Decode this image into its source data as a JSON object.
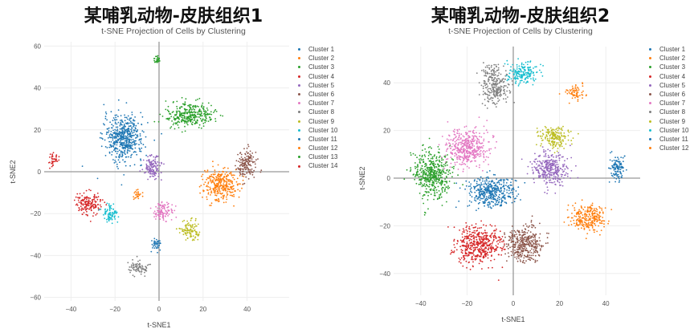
{
  "panels": [
    {
      "heading": "某哺乳动物-皮肤组织1",
      "subtitle": "t-SNE Projection of Cells by Clustering",
      "xlabel": "t-SNE1",
      "ylabel": "t-SNE2",
      "xticks": [
        "−40",
        "−20",
        "0",
        "20",
        "40"
      ],
      "yticks": [
        "60",
        "40",
        "20",
        "0",
        "−20",
        "−40",
        "−60"
      ],
      "legend": [
        "Cluster 1",
        "Cluster 2",
        "Cluster 3",
        "Cluster 4",
        "Cluster 5",
        "Cluster 6",
        "Cluster 7",
        "Cluster 8",
        "Cluster 9",
        "Cluster 10",
        "Cluster 11",
        "Cluster 12",
        "Cluster 13",
        "Cluster 14"
      ]
    },
    {
      "heading": "某哺乳动物-皮肤组织2",
      "subtitle": "t-SNE Projection of Cells by Clustering",
      "xlabel": "t-SNE1",
      "ylabel": "t-SNE2",
      "xticks": [
        "−40",
        "−20",
        "0",
        "20",
        "40"
      ],
      "yticks": [
        "40",
        "20",
        "0",
        "−20",
        "−40"
      ],
      "legend": [
        "Cluster 1",
        "Cluster 2",
        "Cluster 3",
        "Cluster 4",
        "Cluster 5",
        "Cluster 6",
        "Cluster 7",
        "Cluster 8",
        "Cluster 9",
        "Cluster 10",
        "Cluster 11",
        "Cluster 12"
      ]
    }
  ],
  "colors": [
    "#1f77b4",
    "#ff7f0e",
    "#2ca02c",
    "#d62728",
    "#9467bd",
    "#8c564b",
    "#e377c2",
    "#7f7f7f",
    "#bcbd22",
    "#17becf",
    "#1f77b4",
    "#ff7f0e",
    "#2ca02c",
    "#d62728"
  ],
  "chart_data": [
    {
      "type": "scatter",
      "title": "某哺乳动物-皮肤组织1 — t-SNE Projection of Cells by Clustering",
      "xlabel": "t-SNE1",
      "ylabel": "t-SNE2",
      "xlim": [
        -57,
        55
      ],
      "ylim": [
        -62,
        62
      ],
      "grid": true,
      "legend_position": "right",
      "series": [
        {
          "name": "Cluster 1",
          "center": [
            -16,
            16
          ],
          "spread": [
            8,
            10
          ]
        },
        {
          "name": "Cluster 2",
          "center": [
            28,
            -6
          ],
          "spread": [
            7,
            7
          ]
        },
        {
          "name": "Cluster 3",
          "center": [
            14,
            27
          ],
          "spread": [
            10,
            5
          ]
        },
        {
          "name": "Cluster 4",
          "center": [
            -32,
            -15
          ],
          "spread": [
            5,
            5
          ]
        },
        {
          "name": "Cluster 5",
          "center": [
            -3,
            2
          ],
          "spread": [
            4,
            5
          ]
        },
        {
          "name": "Cluster 6",
          "center": [
            40,
            4
          ],
          "spread": [
            4,
            6
          ]
        },
        {
          "name": "Cluster 7",
          "center": [
            2,
            -19
          ],
          "spread": [
            4,
            4
          ]
        },
        {
          "name": "Cluster 8",
          "center": [
            -9,
            -46
          ],
          "spread": [
            4,
            3
          ]
        },
        {
          "name": "Cluster 9",
          "center": [
            14,
            -28
          ],
          "spread": [
            4,
            4
          ]
        },
        {
          "name": "Cluster 10",
          "center": [
            -22,
            -20
          ],
          "spread": [
            3,
            4
          ]
        },
        {
          "name": "Cluster 11",
          "center": [
            -1,
            -35
          ],
          "spread": [
            2,
            3
          ]
        },
        {
          "name": "Cluster 12",
          "center": [
            -10,
            -11
          ],
          "spread": [
            2,
            2
          ]
        },
        {
          "name": "Cluster 13",
          "center": [
            -1,
            53
          ],
          "spread": [
            1.5,
            1.5
          ]
        },
        {
          "name": "Cluster 14",
          "center": [
            -48,
            6
          ],
          "spread": [
            2,
            3
          ]
        }
      ]
    },
    {
      "type": "scatter",
      "title": "某哺乳动物-皮肤组织2 — t-SNE Projection of Cells by Clustering",
      "xlabel": "t-SNE1",
      "ylabel": "t-SNE2",
      "xlim": [
        -50,
        55
      ],
      "ylim": [
        -52,
        50
      ],
      "grid": true,
      "legend_position": "right",
      "series": [
        {
          "name": "Cluster 1",
          "center": [
            -10,
            -6
          ],
          "spread": [
            9,
            6
          ]
        },
        {
          "name": "Cluster 2",
          "center": [
            32,
            -17
          ],
          "spread": [
            7,
            5
          ]
        },
        {
          "name": "Cluster 3",
          "center": [
            -35,
            2
          ],
          "spread": [
            7,
            9
          ]
        },
        {
          "name": "Cluster 4",
          "center": [
            -15,
            -28
          ],
          "spread": [
            9,
            7
          ]
        },
        {
          "name": "Cluster 5",
          "center": [
            16,
            4
          ],
          "spread": [
            7,
            6
          ]
        },
        {
          "name": "Cluster 6",
          "center": [
            5,
            -28
          ],
          "spread": [
            7,
            7
          ]
        },
        {
          "name": "Cluster 7",
          "center": [
            -20,
            13
          ],
          "spread": [
            8,
            7
          ]
        },
        {
          "name": "Cluster 8",
          "center": [
            -8,
            39
          ],
          "spread": [
            5,
            7
          ]
        },
        {
          "name": "Cluster 9",
          "center": [
            18,
            17
          ],
          "spread": [
            6,
            4
          ]
        },
        {
          "name": "Cluster 10",
          "center": [
            4,
            44
          ],
          "spread": [
            6,
            4
          ]
        },
        {
          "name": "Cluster 11",
          "center": [
            45,
            5
          ],
          "spread": [
            3,
            5
          ]
        },
        {
          "name": "Cluster 12",
          "center": [
            27,
            36
          ],
          "spread": [
            3,
            3
          ]
        }
      ]
    }
  ]
}
